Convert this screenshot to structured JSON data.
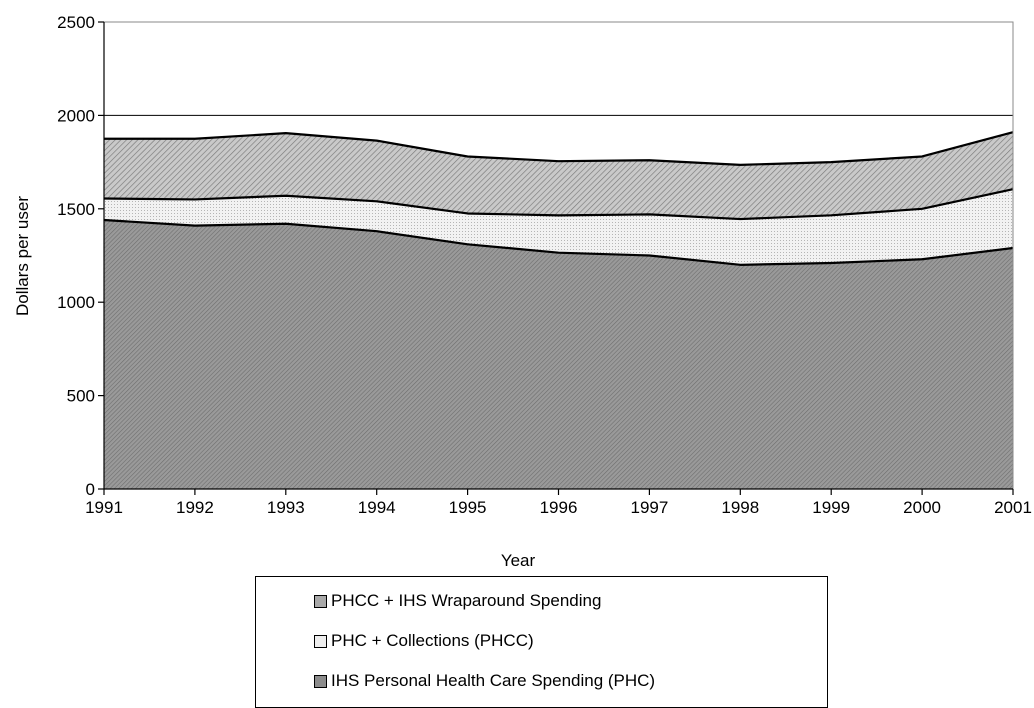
{
  "chart_data": {
    "type": "area",
    "stacked": true,
    "xlabel": "Year",
    "ylabel": "Dollars per user",
    "ylim": [
      0,
      2500
    ],
    "yticks": [
      0,
      500,
      1000,
      1500,
      2000,
      2500
    ],
    "gridlines": [
      2000
    ],
    "x": [
      1991,
      1992,
      1993,
      1994,
      1995,
      1996,
      1997,
      1998,
      1999,
      2000,
      2001
    ],
    "series": [
      {
        "name": "IHS Personal Health Care Spending (PHC)",
        "values": [
          1440,
          1410,
          1420,
          1380,
          1310,
          1265,
          1250,
          1200,
          1210,
          1230,
          1290
        ]
      },
      {
        "name": "PHC + Collections (PHCC)",
        "values": [
          1555,
          1550,
          1570,
          1540,
          1475,
          1465,
          1470,
          1445,
          1465,
          1500,
          1605
        ]
      },
      {
        "name": "PHCC + IHS Wraparound Spending",
        "values": [
          1875,
          1875,
          1905,
          1865,
          1780,
          1755,
          1760,
          1735,
          1750,
          1780,
          1910
        ]
      }
    ],
    "legend": {
      "position": "bottom",
      "order": [
        "PHCC + IHS Wraparound Spending",
        "PHC + Collections (PHCC)",
        "IHS Personal Health Care Spending (PHC)"
      ]
    },
    "colors": {
      "phc": "#8c8c8c",
      "phcc": "#e9e9e9",
      "wrap": "#b3b3b3"
    }
  }
}
